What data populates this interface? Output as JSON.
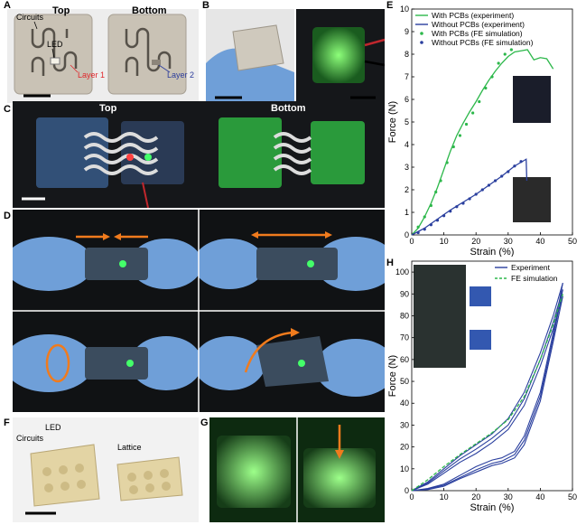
{
  "panels": {
    "A": {
      "letter": "A",
      "top_label": "Top",
      "bottom_label": "Bottom",
      "circuits_label": "Circuits",
      "led_label": "LED",
      "layer1_label": "Layer 1",
      "layer2_label": "Layer 2"
    },
    "B": {
      "letter": "B"
    },
    "C": {
      "letter": "C",
      "top_label": "Top",
      "bottom_label": "Bottom"
    },
    "D": {
      "letter": "D"
    },
    "E": {
      "letter": "E"
    },
    "F": {
      "letter": "F",
      "circuits_label": "Circuits",
      "led_label": "LED",
      "lattice_label": "Lattice"
    },
    "G": {
      "letter": "G"
    },
    "H": {
      "letter": "H"
    }
  },
  "colors": {
    "green": "#2db84b",
    "blue": "#2a3f9e",
    "layer1": "#e0262b",
    "layer2": "#2c3d9c",
    "arrow": "#f07b1d",
    "glove": "#6f9fd8",
    "dark_bg": "#15171a"
  },
  "chart_data": [
    {
      "type": "line",
      "xlabel": "Strain (%)",
      "ylabel": "Force (N)",
      "xlim": [
        0,
        50
      ],
      "ylim": [
        0,
        10
      ],
      "xticks": [
        0,
        10,
        20,
        30,
        40,
        50
      ],
      "yticks": [
        0,
        1,
        2,
        3,
        4,
        5,
        6,
        7,
        8,
        9,
        10
      ],
      "legend_position": "top-left",
      "series": [
        {
          "name": "With PCBs (experiment)",
          "style": "line",
          "color": "#2db84b",
          "x": [
            0,
            2,
            4,
            6,
            8,
            10,
            12,
            14,
            16,
            18,
            20,
            22,
            24,
            26,
            28,
            30,
            32,
            34,
            36,
            38,
            40,
            42,
            44
          ],
          "y": [
            0,
            0.3,
            0.8,
            1.4,
            2.1,
            2.9,
            3.7,
            4.4,
            4.95,
            5.45,
            5.9,
            6.4,
            6.85,
            7.25,
            7.6,
            7.9,
            8.1,
            8.15,
            8.2,
            7.75,
            7.85,
            7.8,
            7.35
          ]
        },
        {
          "name": "Without PCBs (experiment)",
          "style": "line",
          "color": "#2a3f9e",
          "x": [
            0,
            4,
            8,
            12,
            16,
            20,
            24,
            28,
            32,
            35,
            35.6,
            35.8
          ],
          "y": [
            0,
            0.3,
            0.7,
            1.1,
            1.45,
            1.8,
            2.2,
            2.6,
            3.05,
            3.3,
            3.35,
            2.4
          ]
        },
        {
          "name": "With PCBs (FE simulation)",
          "style": "markers",
          "color": "#2db84b",
          "x": [
            2,
            4,
            6,
            7.5,
            9,
            11,
            13,
            15,
            17,
            19,
            21,
            23,
            25,
            27,
            29,
            31
          ],
          "y": [
            0.35,
            0.8,
            1.3,
            1.9,
            2.4,
            3.2,
            3.9,
            4.4,
            4.9,
            5.4,
            5.9,
            6.5,
            7.0,
            7.6,
            8.0,
            8.2
          ]
        },
        {
          "name": "Without PCBs (FE simulation)",
          "style": "markers",
          "color": "#2a3f9e",
          "x": [
            2,
            4,
            6,
            8,
            10,
            12,
            14,
            16,
            18,
            20,
            22,
            24,
            26,
            28,
            30,
            32,
            34
          ],
          "y": [
            0.1,
            0.25,
            0.45,
            0.65,
            0.85,
            1.05,
            1.25,
            1.4,
            1.6,
            1.8,
            2.0,
            2.2,
            2.4,
            2.6,
            2.8,
            3.05,
            3.25
          ]
        }
      ]
    },
    {
      "type": "line",
      "xlabel": "Strain (%)",
      "ylabel": "Force (N)",
      "xlim": [
        0,
        50
      ],
      "ylim": [
        0,
        105
      ],
      "xticks": [
        0,
        10,
        20,
        30,
        40,
        50
      ],
      "yticks": [
        0,
        10,
        20,
        30,
        40,
        50,
        60,
        70,
        80,
        90,
        100
      ],
      "legend_position": "top-right",
      "series": [
        {
          "name": "Experiment",
          "style": "line",
          "color": "#2a3f9e",
          "loops": [
            {
              "load": {
                "x": [
                  0,
                  5,
                  10,
                  15,
                  20,
                  25,
                  30,
                  35,
                  40,
                  44,
                  47
                ],
                "y": [
                  0,
                  4,
                  10,
                  16,
                  21,
                  26,
                  33,
                  45,
                  63,
                  80,
                  95
                ]
              },
              "unload": {
                "x": [
                  47,
                  44,
                  40,
                  35,
                  32,
                  28,
                  25,
                  20,
                  15,
                  10,
                  5,
                  0
                ],
                "y": [
                  95,
                  72,
                  45,
                  25,
                  18,
                  15,
                  14,
                  11,
                  7,
                  3,
                  1,
                  0
                ]
              }
            },
            {
              "load": {
                "x": [
                  0,
                  5,
                  10,
                  15,
                  20,
                  25,
                  30,
                  35,
                  40,
                  44,
                  47
                ],
                "y": [
                  0,
                  3.5,
                  9,
                  14.5,
                  19,
                  24,
                  30,
                  42,
                  60,
                  77,
                  92
                ]
              },
              "unload": {
                "x": [
                  47,
                  44,
                  40,
                  35,
                  32,
                  28,
                  25,
                  20,
                  15,
                  10,
                  5,
                  0
                ],
                "y": [
                  92,
                  70,
                  43,
                  23,
                  16.5,
                  13.5,
                  12.5,
                  9.5,
                  6,
                  2.5,
                  0.8,
                  0
                ]
              }
            },
            {
              "load": {
                "x": [
                  0,
                  5,
                  10,
                  15,
                  20,
                  25,
                  30,
                  35,
                  40,
                  44,
                  47
                ],
                "y": [
                  0,
                  3,
                  8,
                  13,
                  17,
                  22,
                  28,
                  39,
                  57,
                  74,
                  89
                ]
              },
              "unload": {
                "x": [
                  47,
                  44,
                  40,
                  35,
                  32,
                  28,
                  25,
                  20,
                  15,
                  10,
                  5,
                  0
                ],
                "y": [
                  89,
                  68,
                  41,
                  21,
                  15,
                  12.5,
                  11.5,
                  8.5,
                  5.5,
                  2,
                  0.5,
                  0
                ]
              }
            }
          ]
        },
        {
          "name": "FE simulation",
          "style": "dashed",
          "color": "#2db84b",
          "x": [
            0,
            5,
            10,
            15,
            20,
            25,
            30,
            35,
            40,
            44,
            47
          ],
          "y": [
            0,
            5,
            11,
            16.5,
            21.5,
            26.5,
            32.5,
            43,
            60,
            76,
            90
          ]
        }
      ]
    }
  ]
}
